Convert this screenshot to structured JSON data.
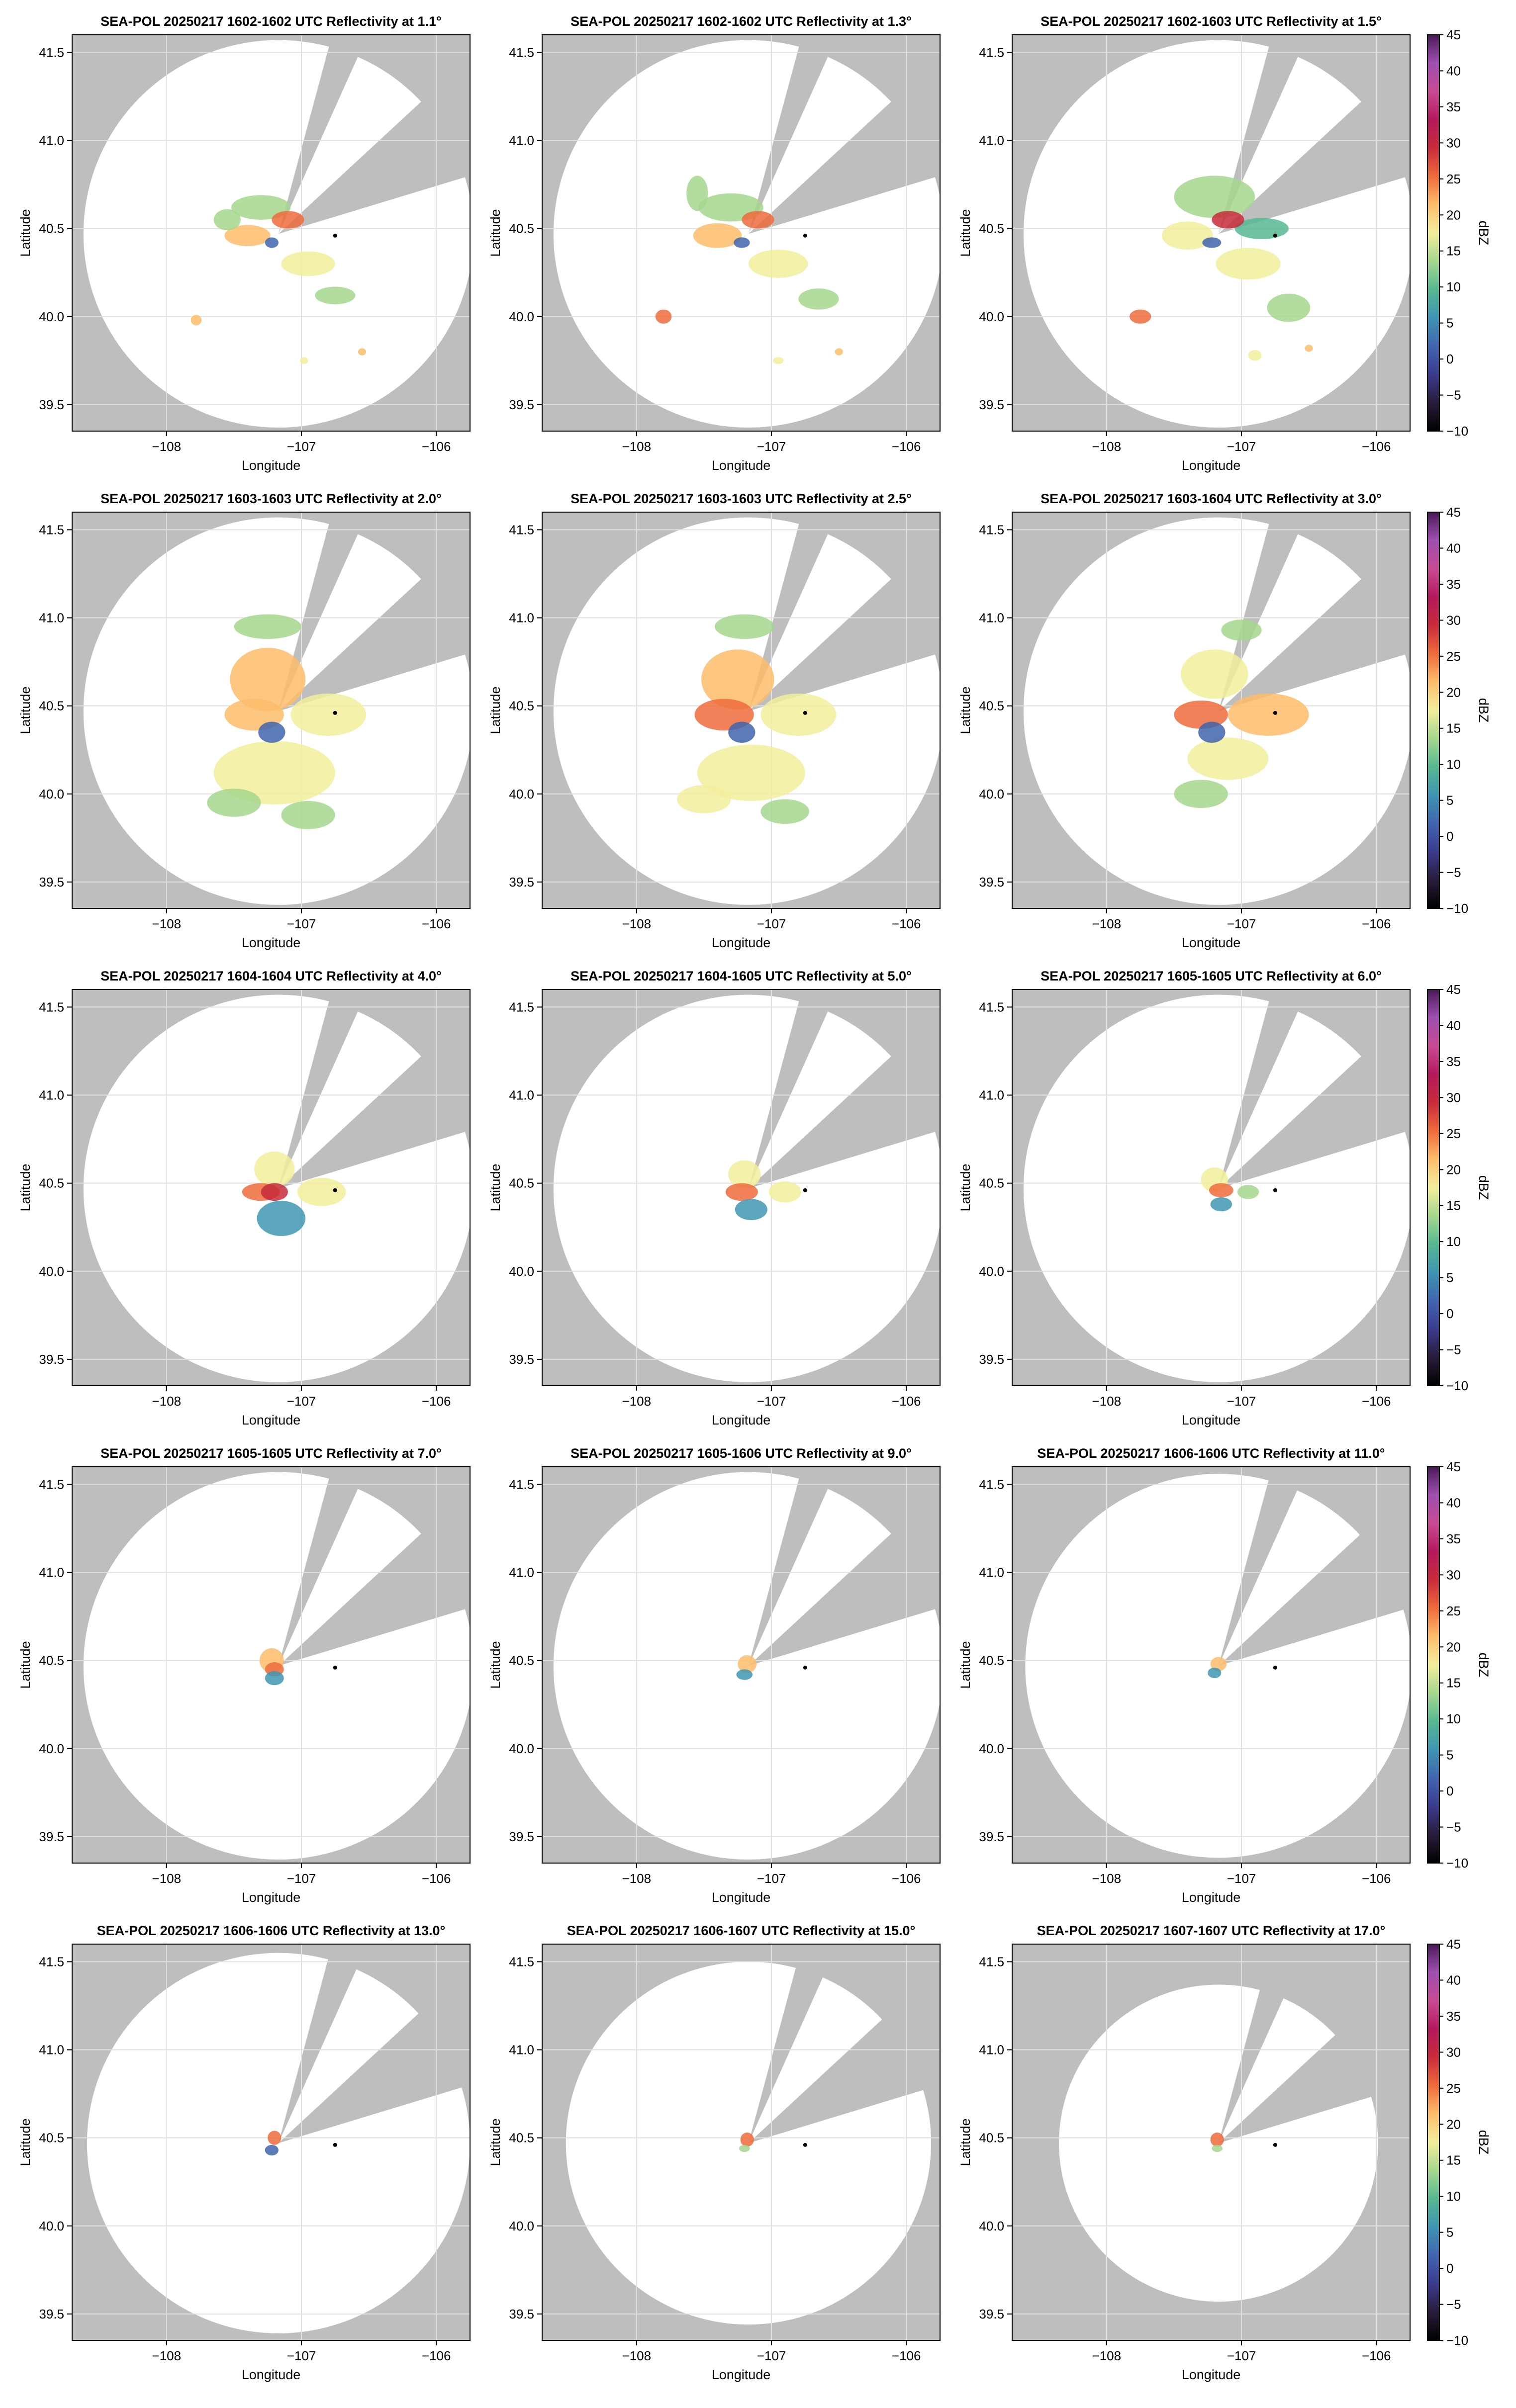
{
  "chart_data": {
    "type": "heatmap",
    "suptitle": "",
    "xlabel": "Longitude",
    "ylabel": "Latitude",
    "xlim": [
      -108.7,
      -105.75
    ],
    "ylim": [
      39.35,
      41.6
    ],
    "xticks": [
      -108,
      -107,
      -106
    ],
    "xtick_labels": [
      "−108",
      "−107",
      "−106"
    ],
    "yticks": [
      39.5,
      40.0,
      40.5,
      41.0,
      41.5
    ],
    "ytick_labels": [
      "39.5",
      "40.0",
      "40.5",
      "41.0",
      "41.5"
    ],
    "grid": true,
    "colorbar": {
      "label": "dBZ",
      "range": [
        -10,
        45
      ],
      "ticks": [
        45,
        40,
        35,
        30,
        25,
        20,
        15,
        10,
        5,
        0,
        -5,
        -10
      ],
      "tick_labels": [
        "45",
        "40",
        "35",
        "30",
        "25",
        "20",
        "15",
        "10",
        "5",
        "0",
        "−5",
        "−10"
      ],
      "colors": [
        "#000000",
        "#2a1c3c",
        "#3a3b8c",
        "#3f64ad",
        "#3f96b3",
        "#57b892",
        "#a6d78d",
        "#f2ee9c",
        "#fdbd6b",
        "#ef6b3c",
        "#c72b3b",
        "#b2195b",
        "#c94b93",
        "#9d4fb0",
        "#4a1a55"
      ]
    },
    "radar_site": {
      "lon": -107.17,
      "lat": 40.47
    },
    "marker_point": {
      "lon": -106.75,
      "lat": 40.46
    },
    "no_coverage_color": "#bebebe",
    "panels": [
      {
        "title": "SEA-POL 20250217 1602-1602 UTC Reflectivity at 1.1°",
        "elevation": 1.1,
        "range_deg_lat": 1.1
      },
      {
        "title": "SEA-POL 20250217 1602-1602 UTC Reflectivity at 1.3°",
        "elevation": 1.3,
        "range_deg_lat": 1.1
      },
      {
        "title": "SEA-POL 20250217 1602-1603 UTC Reflectivity at 1.5°",
        "elevation": 1.5,
        "range_deg_lat": 1.1
      },
      {
        "title": "SEA-POL 20250217 1603-1603 UTC Reflectivity at 2.0°",
        "elevation": 2.0,
        "range_deg_lat": 1.1
      },
      {
        "title": "SEA-POL 20250217 1603-1603 UTC Reflectivity at 2.5°",
        "elevation": 2.5,
        "range_deg_lat": 1.1
      },
      {
        "title": "SEA-POL 20250217 1603-1604 UTC Reflectivity at 3.0°",
        "elevation": 3.0,
        "range_deg_lat": 1.1
      },
      {
        "title": "SEA-POL 20250217 1604-1604 UTC Reflectivity at 4.0°",
        "elevation": 4.0,
        "range_deg_lat": 1.1
      },
      {
        "title": "SEA-POL 20250217 1604-1605 UTC Reflectivity at 5.0°",
        "elevation": 5.0,
        "range_deg_lat": 1.1
      },
      {
        "title": "SEA-POL 20250217 1605-1605 UTC Reflectivity at 6.0°",
        "elevation": 6.0,
        "range_deg_lat": 1.1
      },
      {
        "title": "SEA-POL 20250217 1605-1605 UTC Reflectivity at 7.0°",
        "elevation": 7.0,
        "range_deg_lat": 1.1
      },
      {
        "title": "SEA-POL 20250217 1605-1606 UTC Reflectivity at 9.0°",
        "elevation": 9.0,
        "range_deg_lat": 1.1
      },
      {
        "title": "SEA-POL 20250217 1606-1606 UTC Reflectivity at 11.0°",
        "elevation": 11.0,
        "range_deg_lat": 1.09
      },
      {
        "title": "SEA-POL 20250217 1606-1606 UTC Reflectivity at 13.0°",
        "elevation": 13.0,
        "range_deg_lat": 1.08
      },
      {
        "title": "SEA-POL 20250217 1606-1607 UTC Reflectivity at 15.0°",
        "elevation": 15.0,
        "range_deg_lat": 1.03
      },
      {
        "title": "SEA-POL 20250217 1607-1607 UTC Reflectivity at 17.0°",
        "elevation": 17.0,
        "range_deg_lat": 0.9
      }
    ],
    "echo_blobs": [
      [
        {
          "lon": -107.4,
          "lat": 40.46,
          "rx": 0.17,
          "ry": 0.06,
          "dbz": 20
        },
        {
          "lon": -107.3,
          "lat": 40.62,
          "rx": 0.22,
          "ry": 0.07,
          "dbz": 14
        },
        {
          "lon": -106.95,
          "lat": 40.3,
          "rx": 0.2,
          "ry": 0.07,
          "dbz": 17
        },
        {
          "lon": -106.75,
          "lat": 40.12,
          "rx": 0.15,
          "ry": 0.05,
          "dbz": 12
        },
        {
          "lon": -107.1,
          "lat": 40.55,
          "rx": 0.12,
          "ry": 0.05,
          "dbz": 25
        },
        {
          "lon": -107.55,
          "lat": 40.55,
          "rx": 0.1,
          "ry": 0.06,
          "dbz": 15
        },
        {
          "lon": -107.78,
          "lat": 39.98,
          "rx": 0.04,
          "ry": 0.03,
          "dbz": 22
        },
        {
          "lon": -106.98,
          "lat": 39.75,
          "rx": 0.03,
          "ry": 0.02,
          "dbz": 18
        },
        {
          "lon": -106.55,
          "lat": 39.8,
          "rx": 0.03,
          "ry": 0.02,
          "dbz": 22
        },
        {
          "lon": -107.22,
          "lat": 40.42,
          "rx": 0.05,
          "ry": 0.03,
          "dbz": 3
        }
      ],
      [
        {
          "lon": -107.4,
          "lat": 40.46,
          "rx": 0.18,
          "ry": 0.07,
          "dbz": 20
        },
        {
          "lon": -107.3,
          "lat": 40.62,
          "rx": 0.24,
          "ry": 0.08,
          "dbz": 15
        },
        {
          "lon": -106.95,
          "lat": 40.3,
          "rx": 0.22,
          "ry": 0.08,
          "dbz": 16
        },
        {
          "lon": -106.65,
          "lat": 40.1,
          "rx": 0.15,
          "ry": 0.06,
          "dbz": 12
        },
        {
          "lon": -107.1,
          "lat": 40.55,
          "rx": 0.12,
          "ry": 0.05,
          "dbz": 26
        },
        {
          "lon": -107.55,
          "lat": 40.7,
          "rx": 0.08,
          "ry": 0.1,
          "dbz": 14
        },
        {
          "lon": -107.8,
          "lat": 40.0,
          "rx": 0.06,
          "ry": 0.04,
          "dbz": 25
        },
        {
          "lon": -106.95,
          "lat": 39.75,
          "rx": 0.04,
          "ry": 0.02,
          "dbz": 18
        },
        {
          "lon": -106.5,
          "lat": 39.8,
          "rx": 0.03,
          "ry": 0.02,
          "dbz": 22
        },
        {
          "lon": -107.22,
          "lat": 40.42,
          "rx": 0.06,
          "ry": 0.03,
          "dbz": 2
        }
      ],
      [
        {
          "lon": -107.4,
          "lat": 40.46,
          "rx": 0.19,
          "ry": 0.08,
          "dbz": 19
        },
        {
          "lon": -107.2,
          "lat": 40.68,
          "rx": 0.3,
          "ry": 0.12,
          "dbz": 14
        },
        {
          "lon": -106.95,
          "lat": 40.3,
          "rx": 0.24,
          "ry": 0.09,
          "dbz": 17
        },
        {
          "lon": -106.65,
          "lat": 40.05,
          "rx": 0.16,
          "ry": 0.08,
          "dbz": 13
        },
        {
          "lon": -106.85,
          "lat": 40.5,
          "rx": 0.2,
          "ry": 0.06,
          "dbz": 11
        },
        {
          "lon": -107.1,
          "lat": 40.55,
          "rx": 0.12,
          "ry": 0.05,
          "dbz": 27
        },
        {
          "lon": -107.75,
          "lat": 40.0,
          "rx": 0.08,
          "ry": 0.04,
          "dbz": 24
        },
        {
          "lon": -106.9,
          "lat": 39.78,
          "rx": 0.05,
          "ry": 0.03,
          "dbz": 18
        },
        {
          "lon": -106.5,
          "lat": 39.82,
          "rx": 0.03,
          "ry": 0.02,
          "dbz": 22
        },
        {
          "lon": -107.22,
          "lat": 40.42,
          "rx": 0.07,
          "ry": 0.03,
          "dbz": 2
        }
      ],
      [
        {
          "lon": -107.25,
          "lat": 40.65,
          "rx": 0.28,
          "ry": 0.18,
          "dbz": 20
        },
        {
          "lon": -107.35,
          "lat": 40.45,
          "rx": 0.22,
          "ry": 0.09,
          "dbz": 22
        },
        {
          "lon": -106.8,
          "lat": 40.45,
          "rx": 0.28,
          "ry": 0.12,
          "dbz": 18
        },
        {
          "lon": -107.2,
          "lat": 40.12,
          "rx": 0.45,
          "ry": 0.18,
          "dbz": 17
        },
        {
          "lon": -106.95,
          "lat": 39.88,
          "rx": 0.2,
          "ry": 0.08,
          "dbz": 14
        },
        {
          "lon": -107.5,
          "lat": 39.95,
          "rx": 0.2,
          "ry": 0.08,
          "dbz": 15
        },
        {
          "lon": -107.25,
          "lat": 40.95,
          "rx": 0.25,
          "ry": 0.07,
          "dbz": 13
        },
        {
          "lon": -107.22,
          "lat": 40.35,
          "rx": 0.1,
          "ry": 0.06,
          "dbz": 3
        }
      ],
      [
        {
          "lon": -107.25,
          "lat": 40.65,
          "rx": 0.27,
          "ry": 0.17,
          "dbz": 20
        },
        {
          "lon": -107.35,
          "lat": 40.45,
          "rx": 0.22,
          "ry": 0.09,
          "dbz": 23
        },
        {
          "lon": -106.8,
          "lat": 40.45,
          "rx": 0.28,
          "ry": 0.12,
          "dbz": 19
        },
        {
          "lon": -107.15,
          "lat": 40.12,
          "rx": 0.4,
          "ry": 0.16,
          "dbz": 17
        },
        {
          "lon": -106.9,
          "lat": 39.9,
          "rx": 0.18,
          "ry": 0.07,
          "dbz": 15
        },
        {
          "lon": -107.5,
          "lat": 39.97,
          "rx": 0.2,
          "ry": 0.08,
          "dbz": 16
        },
        {
          "lon": -107.2,
          "lat": 40.95,
          "rx": 0.22,
          "ry": 0.07,
          "dbz": 13
        },
        {
          "lon": -107.22,
          "lat": 40.35,
          "rx": 0.1,
          "ry": 0.06,
          "dbz": 3
        }
      ],
      [
        {
          "lon": -107.2,
          "lat": 40.68,
          "rx": 0.25,
          "ry": 0.14,
          "dbz": 19
        },
        {
          "lon": -107.3,
          "lat": 40.45,
          "rx": 0.2,
          "ry": 0.08,
          "dbz": 24
        },
        {
          "lon": -106.8,
          "lat": 40.45,
          "rx": 0.3,
          "ry": 0.12,
          "dbz": 20
        },
        {
          "lon": -107.1,
          "lat": 40.2,
          "rx": 0.3,
          "ry": 0.12,
          "dbz": 17
        },
        {
          "lon": -107.3,
          "lat": 40.0,
          "rx": 0.2,
          "ry": 0.08,
          "dbz": 15
        },
        {
          "lon": -107.0,
          "lat": 40.93,
          "rx": 0.15,
          "ry": 0.06,
          "dbz": 13
        },
        {
          "lon": -107.22,
          "lat": 40.35,
          "rx": 0.1,
          "ry": 0.06,
          "dbz": 3
        }
      ],
      [
        {
          "lon": -107.2,
          "lat": 40.58,
          "rx": 0.15,
          "ry": 0.1,
          "dbz": 18
        },
        {
          "lon": -107.3,
          "lat": 40.45,
          "rx": 0.14,
          "ry": 0.05,
          "dbz": 24
        },
        {
          "lon": -106.85,
          "lat": 40.45,
          "rx": 0.18,
          "ry": 0.08,
          "dbz": 17
        },
        {
          "lon": -107.15,
          "lat": 40.3,
          "rx": 0.18,
          "ry": 0.1,
          "dbz": 6
        },
        {
          "lon": -107.2,
          "lat": 40.45,
          "rx": 0.1,
          "ry": 0.05,
          "dbz": 28
        }
      ],
      [
        {
          "lon": -107.2,
          "lat": 40.55,
          "rx": 0.12,
          "ry": 0.08,
          "dbz": 18
        },
        {
          "lon": -107.22,
          "lat": 40.45,
          "rx": 0.12,
          "ry": 0.05,
          "dbz": 25
        },
        {
          "lon": -106.9,
          "lat": 40.45,
          "rx": 0.12,
          "ry": 0.06,
          "dbz": 16
        },
        {
          "lon": -107.15,
          "lat": 40.35,
          "rx": 0.12,
          "ry": 0.06,
          "dbz": 6
        }
      ],
      [
        {
          "lon": -107.2,
          "lat": 40.52,
          "rx": 0.1,
          "ry": 0.07,
          "dbz": 18
        },
        {
          "lon": -107.15,
          "lat": 40.46,
          "rx": 0.09,
          "ry": 0.04,
          "dbz": 26
        },
        {
          "lon": -106.95,
          "lat": 40.45,
          "rx": 0.08,
          "ry": 0.04,
          "dbz": 15
        },
        {
          "lon": -107.15,
          "lat": 40.38,
          "rx": 0.08,
          "ry": 0.04,
          "dbz": 6
        }
      ],
      [
        {
          "lon": -107.22,
          "lat": 40.5,
          "rx": 0.09,
          "ry": 0.07,
          "dbz": 20
        },
        {
          "lon": -107.2,
          "lat": 40.45,
          "rx": 0.07,
          "ry": 0.04,
          "dbz": 26
        },
        {
          "lon": -107.2,
          "lat": 40.4,
          "rx": 0.07,
          "ry": 0.04,
          "dbz": 5
        }
      ],
      [
        {
          "lon": -107.18,
          "lat": 40.48,
          "rx": 0.07,
          "ry": 0.05,
          "dbz": 22
        },
        {
          "lon": -107.2,
          "lat": 40.42,
          "rx": 0.06,
          "ry": 0.03,
          "dbz": 6
        }
      ],
      [
        {
          "lon": -107.17,
          "lat": 40.48,
          "rx": 0.06,
          "ry": 0.04,
          "dbz": 21
        },
        {
          "lon": -107.2,
          "lat": 40.43,
          "rx": 0.05,
          "ry": 0.03,
          "dbz": 5
        }
      ],
      [
        {
          "lon": -107.2,
          "lat": 40.5,
          "rx": 0.05,
          "ry": 0.04,
          "dbz": 24
        },
        {
          "lon": -107.22,
          "lat": 40.43,
          "rx": 0.05,
          "ry": 0.03,
          "dbz": 4
        }
      ],
      [
        {
          "lon": -107.18,
          "lat": 40.49,
          "rx": 0.05,
          "ry": 0.04,
          "dbz": 24
        },
        {
          "lon": -107.2,
          "lat": 40.44,
          "rx": 0.04,
          "ry": 0.02,
          "dbz": 14
        }
      ],
      [
        {
          "lon": -107.18,
          "lat": 40.49,
          "rx": 0.05,
          "ry": 0.04,
          "dbz": 24
        },
        {
          "lon": -107.18,
          "lat": 40.44,
          "rx": 0.04,
          "ry": 0.02,
          "dbz": 14
        }
      ]
    ]
  }
}
